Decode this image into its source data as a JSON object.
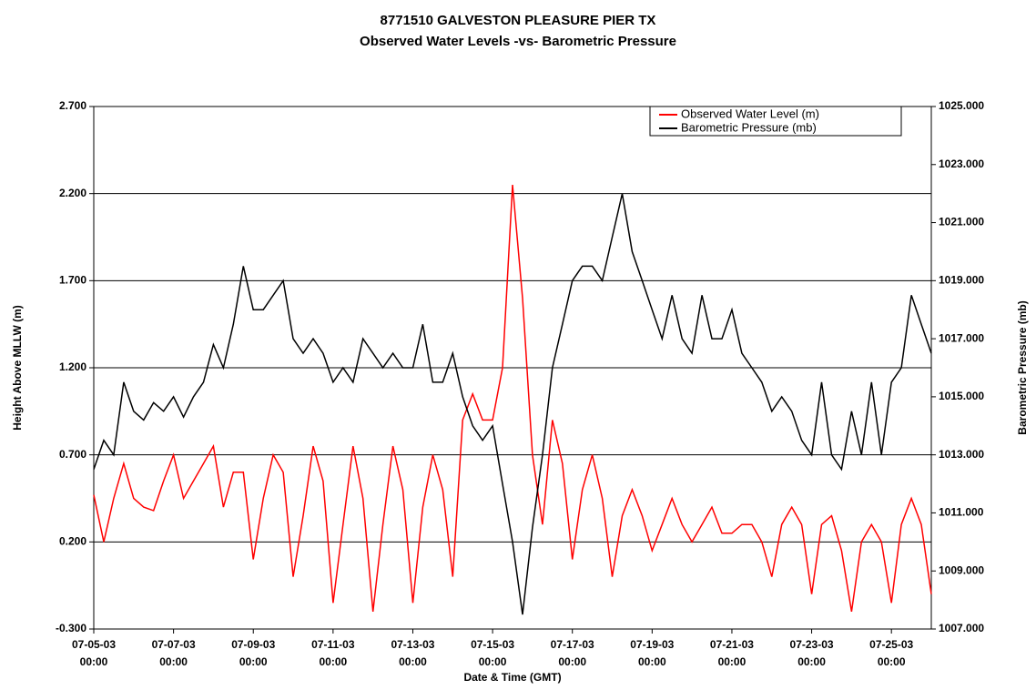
{
  "chart_data": {
    "type": "line",
    "title": "8771510  GALVESTON PLEASURE PIER TX",
    "subtitle": "Observed Water Levels -vs- Barometric Pressure",
    "xlabel": "Date & Time (GMT)",
    "ylabel": "Height Above MLLW (m)",
    "y2label": "Barometric Pressure (mb)",
    "legend": "upper right",
    "grid": true,
    "xlim": [
      "07-05-03 00:00",
      "07-26-03 00:00"
    ],
    "xticks": [
      "07-05-03 00:00",
      "07-07-03 00:00",
      "07-09-03 00:00",
      "07-11-03 00:00",
      "07-13-03 00:00",
      "07-15-03 00:00",
      "07-17-03 00:00",
      "07-19-03 00:00",
      "07-21-03 00:00",
      "07-23-03 00:00",
      "07-25-03 00:00"
    ],
    "ylim": [
      -0.3,
      2.7
    ],
    "yticks": [
      {
        "value": -0.3,
        "label": "-0.300"
      },
      {
        "value": 0.2,
        "label": "0.200"
      },
      {
        "value": 0.7,
        "label": "0.700"
      },
      {
        "value": 1.2,
        "label": "1.200"
      },
      {
        "value": 1.7,
        "label": "1.700"
      },
      {
        "value": 2.2,
        "label": "2.200"
      },
      {
        "value": 2.7,
        "label": "2.700"
      }
    ],
    "y2lim": [
      1007,
      1025
    ],
    "y2ticks": [
      {
        "value": 1007,
        "label": "1007.000"
      },
      {
        "value": 1009,
        "label": "1009.000"
      },
      {
        "value": 1011,
        "label": "1011.000"
      },
      {
        "value": 1013,
        "label": "1013.000"
      },
      {
        "value": 1015,
        "label": "1015.000"
      },
      {
        "value": 1017,
        "label": "1017.000"
      },
      {
        "value": 1019,
        "label": "1019.000"
      },
      {
        "value": 1021,
        "label": "1021.000"
      },
      {
        "value": 1023,
        "label": "1023.000"
      },
      {
        "value": 1025,
        "label": "1025.000"
      }
    ],
    "x": [
      "07-05-03 00:00",
      "07-05-03 06:00",
      "07-05-03 12:00",
      "07-05-03 18:00",
      "07-06-03 00:00",
      "07-06-03 06:00",
      "07-06-03 12:00",
      "07-06-03 18:00",
      "07-07-03 00:00",
      "07-07-03 06:00",
      "07-07-03 12:00",
      "07-07-03 18:00",
      "07-08-03 00:00",
      "07-08-03 06:00",
      "07-08-03 12:00",
      "07-08-03 18:00",
      "07-09-03 00:00",
      "07-09-03 06:00",
      "07-09-03 12:00",
      "07-09-03 18:00",
      "07-10-03 00:00",
      "07-10-03 06:00",
      "07-10-03 12:00",
      "07-10-03 18:00",
      "07-11-03 00:00",
      "07-11-03 06:00",
      "07-11-03 12:00",
      "07-11-03 18:00",
      "07-12-03 00:00",
      "07-12-03 06:00",
      "07-12-03 12:00",
      "07-12-03 18:00",
      "07-13-03 00:00",
      "07-13-03 06:00",
      "07-13-03 12:00",
      "07-13-03 18:00",
      "07-14-03 00:00",
      "07-14-03 06:00",
      "07-14-03 12:00",
      "07-14-03 18:00",
      "07-15-03 00:00",
      "07-15-03 06:00",
      "07-15-03 12:00",
      "07-15-03 18:00",
      "07-16-03 00:00",
      "07-16-03 06:00",
      "07-16-03 12:00",
      "07-16-03 18:00",
      "07-17-03 00:00",
      "07-17-03 06:00",
      "07-17-03 12:00",
      "07-17-03 18:00",
      "07-18-03 00:00",
      "07-18-03 06:00",
      "07-18-03 12:00",
      "07-18-03 18:00",
      "07-19-03 00:00",
      "07-19-03 06:00",
      "07-19-03 12:00",
      "07-19-03 18:00",
      "07-20-03 00:00",
      "07-20-03 06:00",
      "07-20-03 12:00",
      "07-20-03 18:00",
      "07-21-03 00:00",
      "07-21-03 06:00",
      "07-21-03 12:00",
      "07-21-03 18:00",
      "07-22-03 00:00",
      "07-22-03 06:00",
      "07-22-03 12:00",
      "07-22-03 18:00",
      "07-23-03 00:00",
      "07-23-03 06:00",
      "07-23-03 12:00",
      "07-23-03 18:00",
      "07-24-03 00:00",
      "07-24-03 06:00",
      "07-24-03 12:00",
      "07-24-03 18:00",
      "07-25-03 00:00",
      "07-25-03 06:00",
      "07-25-03 12:00",
      "07-25-03 18:00",
      "07-26-03 00:00"
    ],
    "series": [
      {
        "name": "Observed Water Level (m)",
        "color": "#ff0000",
        "values": [
          0.47,
          0.2,
          0.45,
          0.65,
          0.45,
          0.4,
          0.38,
          0.55,
          0.7,
          0.45,
          0.55,
          0.65,
          0.75,
          0.4,
          0.6,
          0.6,
          0.1,
          0.45,
          0.7,
          0.6,
          0.0,
          0.35,
          0.75,
          0.55,
          -0.15,
          0.3,
          0.75,
          0.45,
          -0.2,
          0.3,
          0.75,
          0.5,
          -0.15,
          0.4,
          0.7,
          0.5,
          0.0,
          0.9,
          1.05,
          0.9,
          0.9,
          1.2,
          2.25,
          1.6,
          0.7,
          0.3,
          0.9,
          0.65,
          0.1,
          0.5,
          0.7,
          0.45,
          0.0,
          0.35,
          0.5,
          0.35,
          0.15,
          0.3,
          0.45,
          0.3,
          0.2,
          0.3,
          0.4,
          0.25,
          0.25,
          0.3,
          0.3,
          0.2,
          0.0,
          0.3,
          0.4,
          0.3,
          -0.1,
          0.3,
          0.35,
          0.15,
          -0.2,
          0.2,
          0.3,
          0.2,
          -0.15,
          0.3,
          0.45,
          0.3,
          -0.1
        ]
      },
      {
        "name": "Barometric Pressure (mb)",
        "color": "#000000",
        "axis": "y2",
        "values": [
          1012.5,
          1013.5,
          1013.0,
          1015.5,
          1014.5,
          1014.2,
          1014.8,
          1014.5,
          1015.0,
          1014.3,
          1015.0,
          1015.5,
          1016.8,
          1016.0,
          1017.5,
          1019.5,
          1018.0,
          1018.0,
          1018.5,
          1019.0,
          1017.0,
          1016.5,
          1017.0,
          1016.5,
          1015.5,
          1016.0,
          1015.5,
          1017.0,
          1016.5,
          1016.0,
          1016.5,
          1016.0,
          1016.0,
          1017.5,
          1015.5,
          1015.5,
          1016.5,
          1015.0,
          1014.0,
          1013.5,
          1014.0,
          1012.0,
          1010.0,
          1007.5,
          1010.5,
          1013.0,
          1016.0,
          1017.5,
          1019.0,
          1019.5,
          1019.5,
          1019.0,
          1020.5,
          1022.0,
          1020.0,
          1019.0,
          1018.0,
          1017.0,
          1018.5,
          1017.0,
          1016.5,
          1018.5,
          1017.0,
          1017.0,
          1018.0,
          1016.5,
          1016.0,
          1015.5,
          1014.5,
          1015.0,
          1014.5,
          1013.5,
          1013.0,
          1015.5,
          1013.0,
          1012.5,
          1014.5,
          1013.0,
          1015.5,
          1013.0,
          1015.5,
          1016.0,
          1018.5,
          1017.5,
          1016.5
        ]
      }
    ]
  }
}
